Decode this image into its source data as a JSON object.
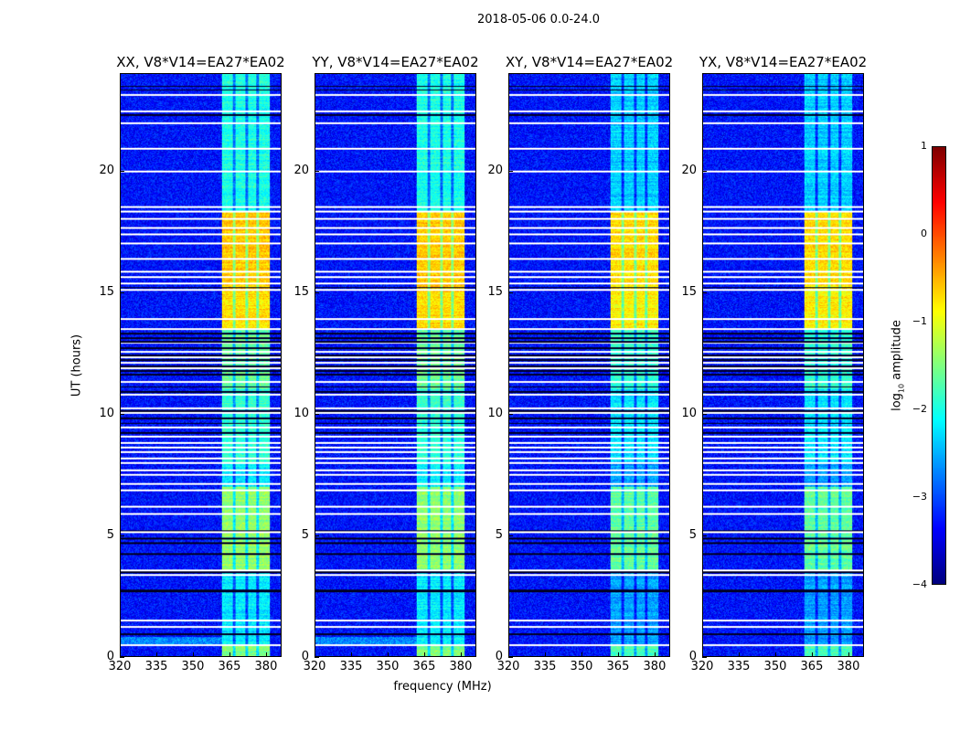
{
  "chart_data": {
    "type": "heatmap",
    "title": "2018-05-06 0.0-24.0",
    "xlabel": "frequency (MHz)",
    "ylabel": "UT (hours)",
    "xlim": [
      320,
      386.4
    ],
    "ylim": [
      0,
      24
    ],
    "xticks": [
      "320",
      "335",
      "350",
      "365",
      "380"
    ],
    "xtick_values": [
      320,
      335,
      350,
      365,
      380
    ],
    "yticks": [
      "0",
      "5",
      "10",
      "15",
      "20"
    ],
    "ytick_values": [
      0,
      5,
      10,
      15,
      20
    ],
    "panels": [
      {
        "title": "XX, V8*V14=EA27*EA02",
        "gain": 1.0
      },
      {
        "title": "YY, V8*V14=EA27*EA02",
        "gain": 1.0
      },
      {
        "title": "XY, V8*V14=EA27*EA02",
        "gain": 0.85
      },
      {
        "title": "YX, V8*V14=EA27*EA02",
        "gain": 0.85
      }
    ],
    "colorbar": {
      "label": "log10 amplitude",
      "label_main": "log",
      "label_sub": "10",
      "label_rest": " amplitude",
      "range": [
        -4,
        1
      ],
      "ticks": [
        "1",
        "0",
        "−1",
        "−2",
        "−3",
        "−4"
      ],
      "tick_values": [
        1,
        0,
        -1,
        -2,
        -3,
        -4
      ],
      "colormap": "jet"
    },
    "background_log_amplitude": -3.3,
    "rfi_band_mhz": [
      362,
      382
    ],
    "rfi_subband_gaps_mhz": [
      367,
      372.3,
      376.8
    ],
    "rfi_levels_by_hour": [
      {
        "from": 0,
        "to": 0.45,
        "level": -1.5
      },
      {
        "from": 0.45,
        "to": 3.5,
        "level": -2.2
      },
      {
        "from": 3.5,
        "to": 7.0,
        "level": -1.4
      },
      {
        "from": 7.0,
        "to": 8.0,
        "level": -2.2
      },
      {
        "from": 8.0,
        "to": 11.0,
        "level": -1.9
      },
      {
        "from": 11.0,
        "to": 13.5,
        "level": -1.6
      },
      {
        "from": 13.5,
        "to": 15.1,
        "level": -0.7
      },
      {
        "from": 15.1,
        "to": 18.3,
        "level": -0.6
      },
      {
        "from": 18.3,
        "to": 24,
        "level": -2.0
      }
    ],
    "flagged_hours_white": [
      23.13,
      22.46,
      21.97,
      20.92,
      19.98,
      18.51,
      18.33,
      18.02,
      17.65,
      17.39,
      17.01,
      16.37,
      15.85,
      15.62,
      15.36,
      15.1,
      13.9,
      13.48,
      12.9,
      12.54,
      12.32,
      12.1,
      11.87,
      11.3,
      10.78,
      10.21,
      10.03,
      9.43,
      9.05,
      8.79,
      8.6,
      8.41,
      8.15,
      7.96,
      7.66,
      7.47,
      7.1,
      6.83,
      6.16,
      5.86,
      5.1,
      3.53,
      3.34,
      1.46,
      1.2,
      0.45
    ],
    "zero_hours_black": [
      23.5,
      23.35,
      22.3,
      15.2,
      13.3,
      13.1,
      12.95,
      12.7,
      12.4,
      12.2,
      11.95,
      11.75,
      11.6,
      11.1,
      10.9,
      10.1,
      9.8,
      9.6,
      9.2,
      5.15,
      4.85,
      4.65,
      4.2,
      3.45,
      2.7,
      2.65,
      0.9
    ]
  }
}
